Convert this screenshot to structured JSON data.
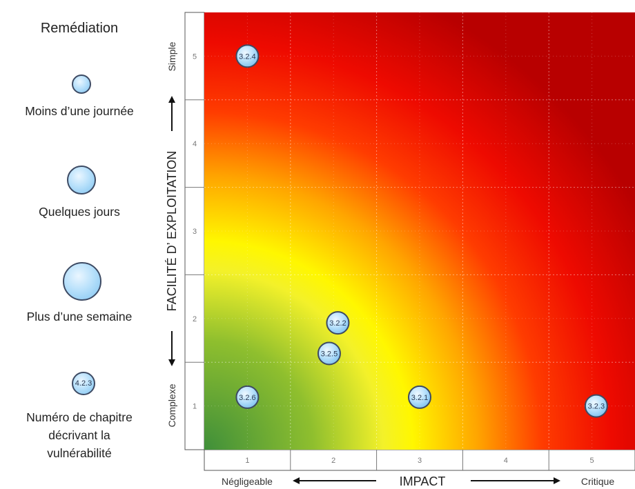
{
  "legend": {
    "title": "Remédiation",
    "items": [
      {
        "label": "Moins d’une journée",
        "size": "small"
      },
      {
        "label": "Quelques jours",
        "size": "medium"
      },
      {
        "label": "Plus d’une semaine",
        "size": "large"
      }
    ],
    "chapter_example": {
      "bubble_text": "4.2.3",
      "label_lines": [
        "Numéro de chapitre",
        "décrivant la",
        "vulnérabilité"
      ]
    }
  },
  "chart_data": {
    "type": "scatter",
    "xlabel": "IMPACT",
    "ylabel": "FACILITÉ D’ EXPLOITATION",
    "x_low_label": "Négligeable",
    "x_high_label": "Critique",
    "y_low_label": "Complexe",
    "y_high_label": "Simple",
    "x_ticks": [
      "1",
      "2",
      "3",
      "4",
      "5"
    ],
    "y_ticks": [
      "1",
      "2",
      "3",
      "4",
      "5"
    ],
    "xlim": [
      0.5,
      5.5
    ],
    "ylim": [
      0.5,
      5.5
    ],
    "grid": true,
    "background": "risk heat gradient green (low) to yellow to red (high)",
    "points": [
      {
        "label": "3.2.4",
        "x": 1.0,
        "y": 5.0,
        "remediation": "small"
      },
      {
        "label": "3.2.2",
        "x": 2.05,
        "y": 1.95,
        "remediation": "small"
      },
      {
        "label": "3.2.5",
        "x": 1.95,
        "y": 1.6,
        "remediation": "small"
      },
      {
        "label": "3.2.6",
        "x": 1.0,
        "y": 1.1,
        "remediation": "small"
      },
      {
        "label": "3.2.1",
        "x": 3.0,
        "y": 1.1,
        "remediation": "small"
      },
      {
        "label": "3.2.3",
        "x": 5.05,
        "y": 1.0,
        "remediation": "small"
      }
    ]
  },
  "colors": {
    "bubble_fill": "#b9e1fb",
    "bubble_stroke": "#3d4a63",
    "low_risk": "#3f8f3a",
    "mid_risk": "#fff700",
    "high_risk": "#c40000"
  }
}
